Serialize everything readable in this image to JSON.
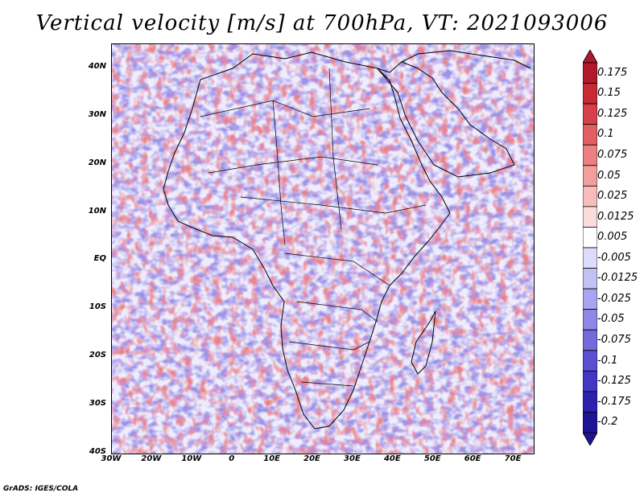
{
  "title": "Vertical velocity [m/s] at 700hPa, VT: 2021093006",
  "map": {
    "lat_labels": [
      "40N",
      "30N",
      "20N",
      "10N",
      "EQ",
      "10S",
      "20S",
      "30S",
      "40S"
    ],
    "lat_values": [
      40,
      30,
      20,
      10,
      0,
      -10,
      -20,
      -30,
      -40
    ],
    "lon_labels": [
      "30W",
      "20W",
      "10W",
      "0",
      "10E",
      "20E",
      "30E",
      "40E",
      "50E",
      "60E",
      "70E"
    ],
    "lon_values": [
      -30,
      -20,
      -10,
      0,
      10,
      20,
      30,
      40,
      50,
      60,
      70
    ],
    "lon_range": [
      -30,
      75
    ],
    "lat_range": [
      -40,
      45
    ]
  },
  "colorbar": {
    "labels": [
      "0.175",
      "0.15",
      "0.125",
      "0.1",
      "0.075",
      "0.05",
      "0.025",
      "0.0125",
      "0.005",
      "-0.005",
      "-0.0125",
      "-0.025",
      "-0.05",
      "-0.075",
      "-0.1",
      "-0.125",
      "-0.175",
      "-0.2"
    ],
    "colors": [
      "#b2182b",
      "#c62a32",
      "#d6404a",
      "#e35e63",
      "#ec7f80",
      "#f29e9c",
      "#f7bdbb",
      "#fadcda",
      "#ffffff",
      "#dedcfb",
      "#c4c1f5",
      "#a9a5ee",
      "#8e88e6",
      "#736bdc",
      "#5a50d1",
      "#4238c3",
      "#2d22b0",
      "#1d1496"
    ]
  },
  "credit": "GrADS: IGES/COLA"
}
